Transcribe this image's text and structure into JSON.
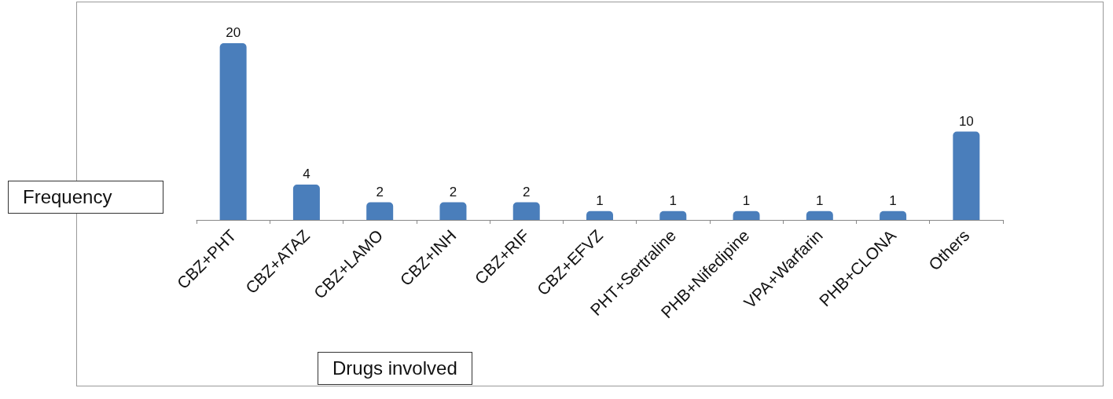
{
  "chart_data": {
    "type": "bar",
    "xlabel": "Drugs involved",
    "ylabel": "Frequency",
    "categories": [
      "CBZ+PHT",
      "CBZ+ATAZ",
      "CBZ+LAMO",
      "CBZ+INH",
      "CBZ+RIF",
      "CBZ+EFVZ",
      "PHT+Sertraline",
      "PHB+Nifedipine",
      "VPA+Warfarin",
      "PHB+CLONA",
      "Others"
    ],
    "values": [
      20,
      4,
      2,
      2,
      2,
      1,
      1,
      1,
      1,
      1,
      10
    ],
    "color": "#4a7ebb",
    "data_labels": true,
    "grid": false
  }
}
